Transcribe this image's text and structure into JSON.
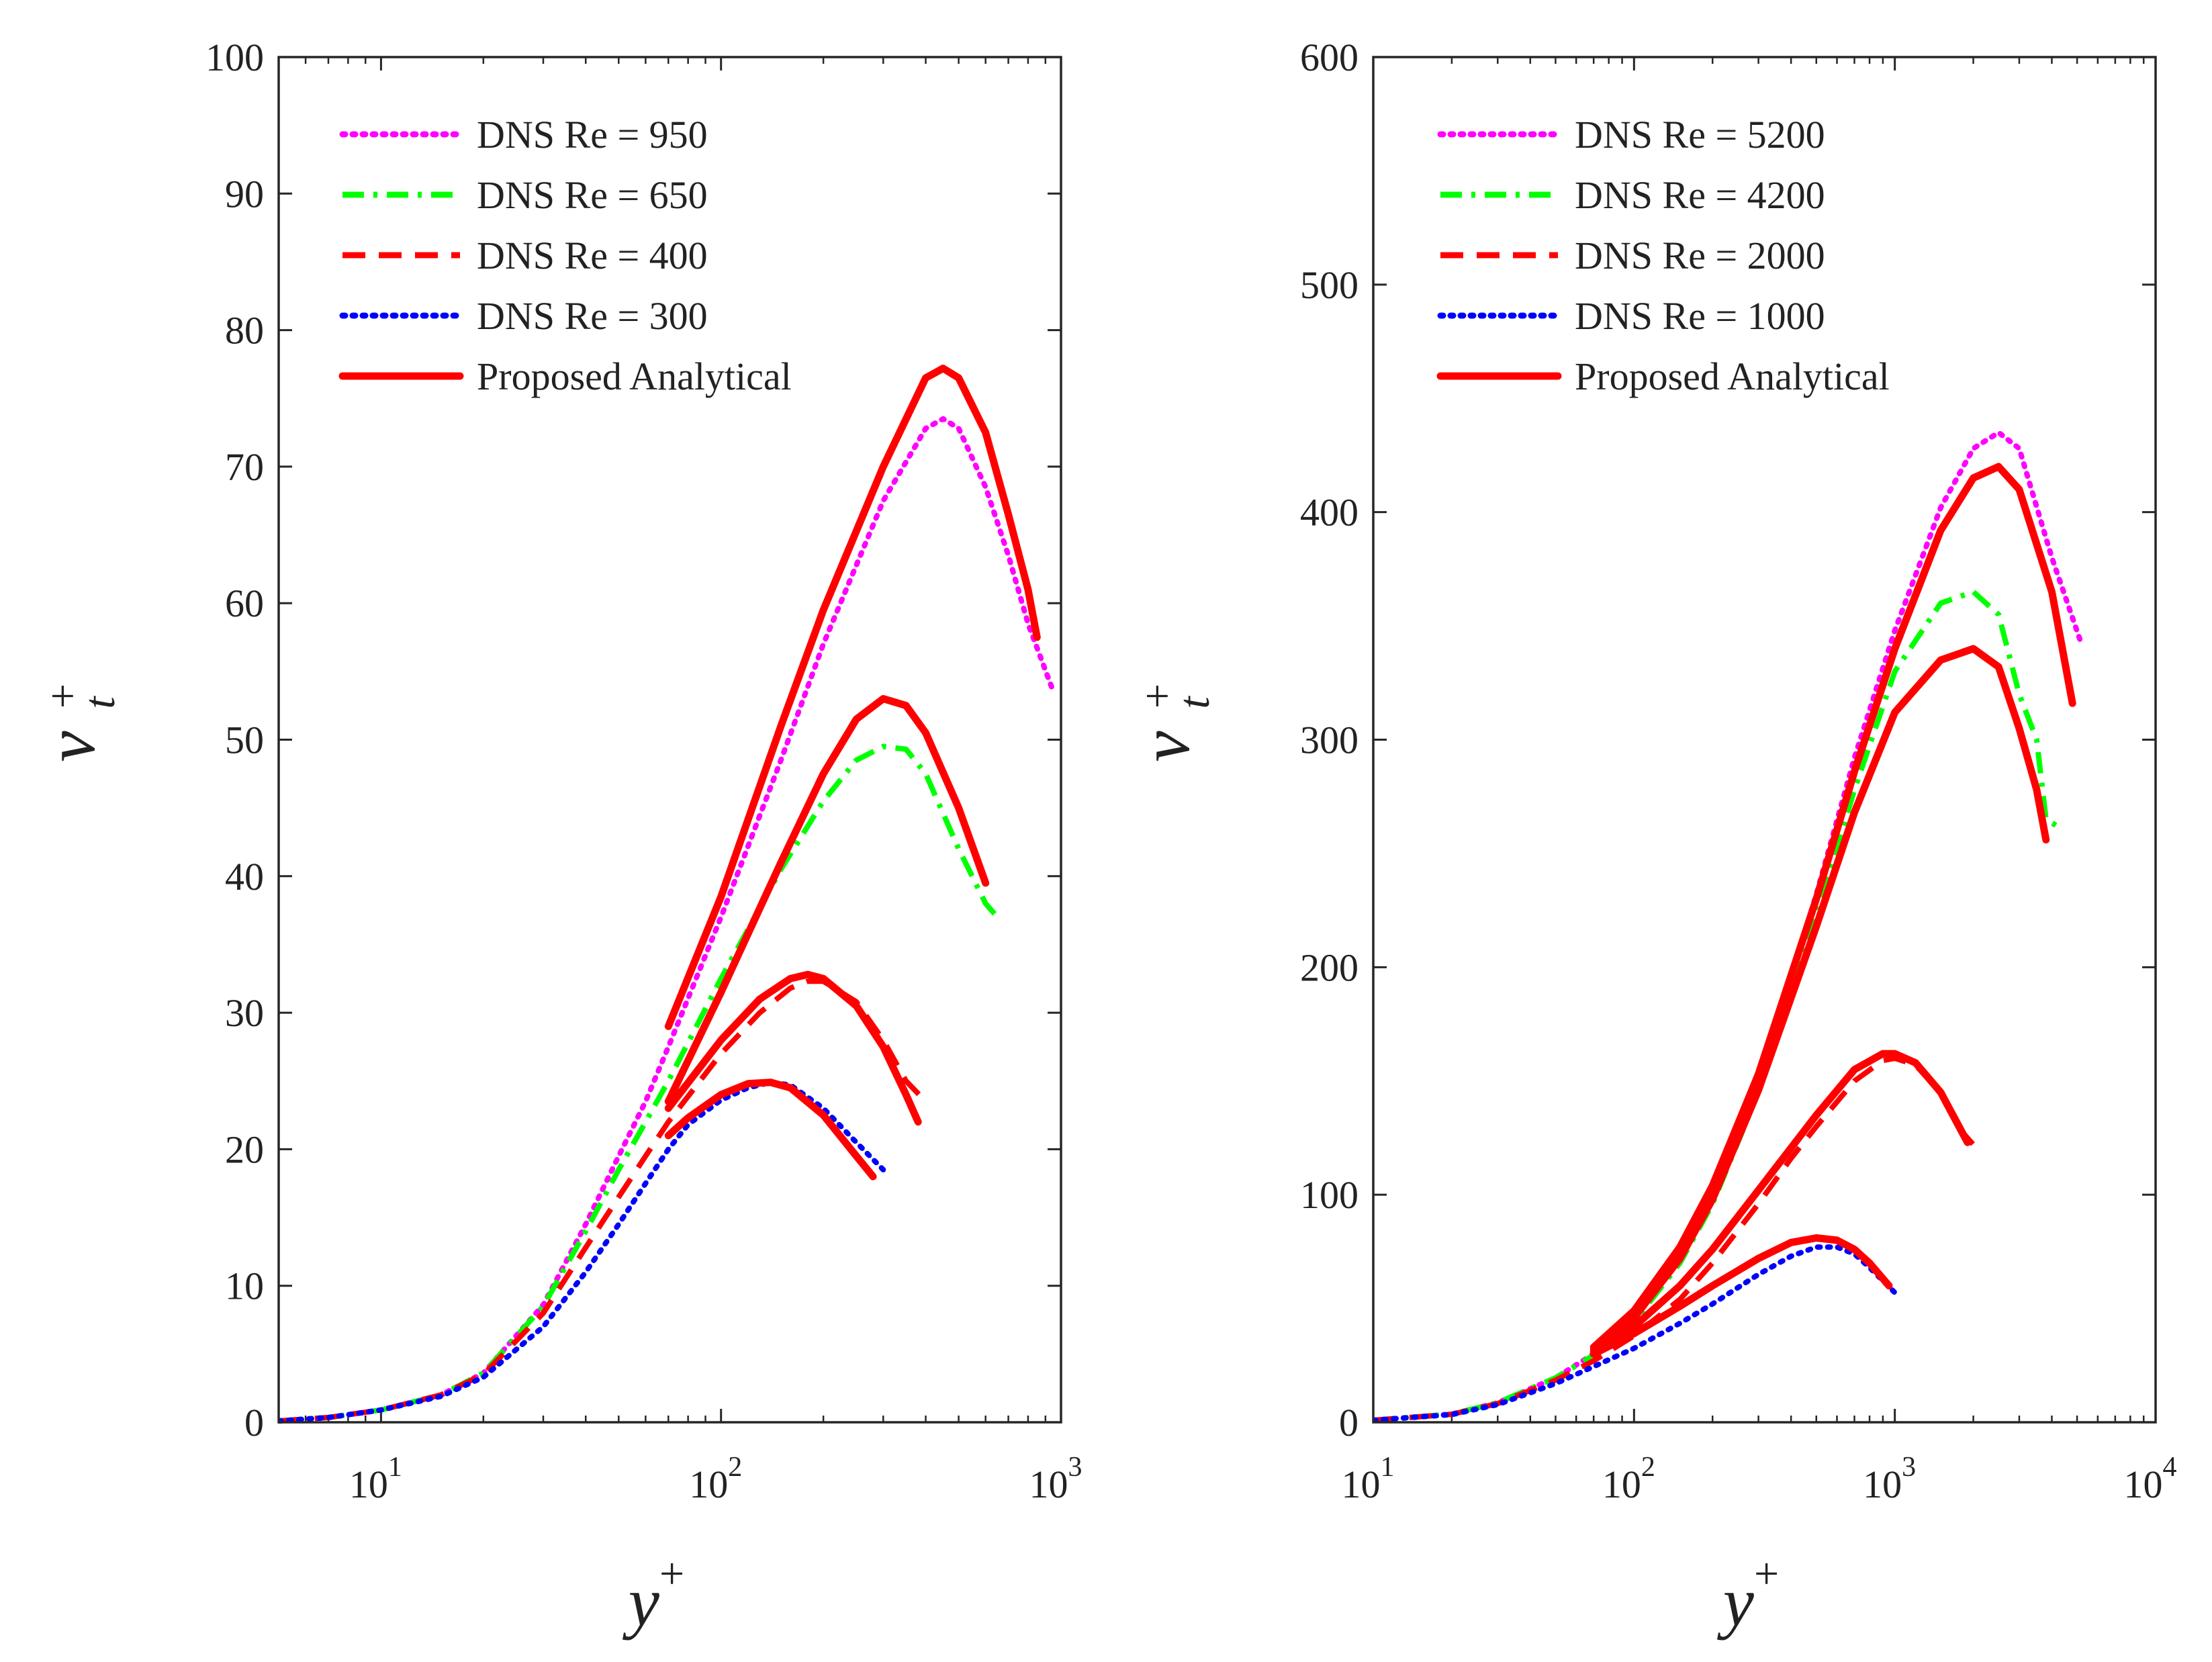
{
  "colors": {
    "magenta": "#ff00ff",
    "green": "#00ff00",
    "red": "#ff0000",
    "blue": "#0000ff",
    "axis": "#262626"
  },
  "chart_data": [
    {
      "type": "line",
      "xscale": "log",
      "xlim": [
        5,
        1000
      ],
      "ylim": [
        0,
        100
      ],
      "yticks": [
        "0",
        "10",
        "20",
        "30",
        "40",
        "50",
        "60",
        "70",
        "80",
        "90",
        "100"
      ],
      "xticks": [
        {
          "base": "10",
          "exp": "1",
          "value": 10
        },
        {
          "base": "10",
          "exp": "2",
          "value": 100
        },
        {
          "base": "10",
          "exp": "3",
          "value": 1000
        }
      ],
      "xlabel": {
        "base": "y",
        "sup": "+"
      },
      "ylabel": {
        "base": "ν",
        "sup": "+",
        "sub": "t"
      },
      "legend_position": "top-left",
      "series": [
        {
          "name": "DNS Re = 950",
          "color": "magenta",
          "style": "dotted",
          "x": [
            5,
            7,
            10,
            15,
            20,
            30,
            40,
            50,
            60,
            70,
            100,
            150,
            200,
            300,
            400,
            450,
            500,
            600,
            700,
            800,
            950
          ],
          "y": [
            0.1,
            0.35,
            0.9,
            2.0,
            3.6,
            8.6,
            14.5,
            19.5,
            23.5,
            27.5,
            37.0,
            48.5,
            57.0,
            67.5,
            72.8,
            73.5,
            72.8,
            68.5,
            63.5,
            58.5,
            53.5
          ]
        },
        {
          "name": "DNS Re = 650",
          "color": "green",
          "style": "dashdot",
          "x": [
            5,
            7,
            10,
            15,
            20,
            30,
            40,
            50,
            60,
            70,
            100,
            150,
            200,
            250,
            300,
            350,
            400,
            500,
            600,
            650
          ],
          "y": [
            0.1,
            0.35,
            0.9,
            2.0,
            3.6,
            8.5,
            14.0,
            18.5,
            22.0,
            25.0,
            32.5,
            40.5,
            45.5,
            48.5,
            49.5,
            49.3,
            47.5,
            42.0,
            38.0,
            37.0
          ]
        },
        {
          "name": "DNS Re = 400",
          "color": "red",
          "style": "dashed",
          "x": [
            5,
            7,
            10,
            15,
            20,
            30,
            40,
            50,
            60,
            70,
            100,
            130,
            160,
            180,
            200,
            250,
            300,
            350,
            400
          ],
          "y": [
            0.1,
            0.35,
            0.9,
            2.0,
            3.5,
            8.0,
            12.8,
            16.5,
            19.5,
            22.0,
            27.0,
            30.0,
            31.8,
            32.3,
            32.3,
            30.8,
            28.0,
            25.0,
            23.5
          ]
        },
        {
          "name": "DNS Re = 300",
          "color": "blue",
          "style": "dotted",
          "x": [
            5,
            7,
            10,
            15,
            20,
            30,
            40,
            50,
            60,
            70,
            80,
            100,
            120,
            140,
            160,
            200,
            250,
            300
          ],
          "y": [
            0.1,
            0.35,
            0.9,
            1.9,
            3.3,
            7.0,
            11.0,
            14.5,
            17.5,
            20.0,
            21.8,
            23.6,
            24.5,
            24.9,
            24.7,
            23.0,
            20.5,
            18.5
          ]
        },
        {
          "name": "Proposed Analytical",
          "color": "red",
          "style": "solid",
          "segments": [
            {
              "x": [
                70,
                100,
                150,
                200,
                300,
                400,
                450,
                500,
                600,
                700,
                800,
                850
              ],
              "y": [
                29.0,
                38.5,
                51.0,
                59.5,
                70.0,
                76.5,
                77.2,
                76.5,
                72.5,
                66.5,
                61.0,
                57.5
              ]
            },
            {
              "x": [
                70,
                100,
                150,
                200,
                250,
                300,
                350,
                400,
                500,
                600
              ],
              "y": [
                23.5,
                31.5,
                41.0,
                47.5,
                51.5,
                53.0,
                52.5,
                50.5,
                45.0,
                39.5
              ]
            },
            {
              "x": [
                70,
                100,
                130,
                160,
                180,
                200,
                250,
                300,
                350,
                380
              ],
              "y": [
                23.0,
                28.0,
                31.0,
                32.5,
                32.8,
                32.5,
                30.5,
                27.5,
                24.0,
                22.0
              ]
            },
            {
              "x": [
                70,
                80,
                100,
                120,
                140,
                160,
                200,
                250,
                280
              ],
              "y": [
                21.0,
                22.3,
                24.0,
                24.8,
                24.9,
                24.5,
                22.5,
                19.5,
                18.0
              ]
            }
          ]
        }
      ]
    },
    {
      "type": "line",
      "xscale": "log",
      "xlim": [
        10,
        10000
      ],
      "ylim": [
        0,
        600
      ],
      "yticks": [
        "0",
        "100",
        "200",
        "300",
        "400",
        "500",
        "600"
      ],
      "xticks": [
        {
          "base": "10",
          "exp": "1",
          "value": 10
        },
        {
          "base": "10",
          "exp": "2",
          "value": 100
        },
        {
          "base": "10",
          "exp": "3",
          "value": 1000
        },
        {
          "base": "10",
          "exp": "4",
          "value": 10000
        }
      ],
      "xlabel": {
        "base": "y",
        "sup": "+"
      },
      "ylabel": {
        "base": "ν",
        "sup": "+",
        "sub": "t"
      },
      "legend_position": "top-left",
      "series": [
        {
          "name": "DNS Re = 5200",
          "color": "magenta",
          "style": "dotted",
          "x": [
            10,
            20,
            30,
            50,
            70,
            100,
            150,
            200,
            300,
            500,
            700,
            1000,
            1500,
            2000,
            2500,
            3000,
            4000,
            5200
          ],
          "y": [
            0.9,
            3.6,
            8.6,
            19.5,
            30.0,
            45.0,
            72.0,
            99.0,
            150.0,
            232.0,
            292.0,
            348.0,
            402.0,
            428.0,
            435.0,
            428.0,
            380.0,
            342.0
          ]
        },
        {
          "name": "DNS Re = 4200",
          "color": "green",
          "style": "dashdot",
          "x": [
            10,
            20,
            30,
            50,
            70,
            100,
            150,
            200,
            300,
            500,
            700,
            1000,
            1500,
            2000,
            2500,
            3000,
            3500,
            3800,
            4200
          ],
          "y": [
            0.9,
            3.6,
            8.6,
            19.5,
            29.5,
            44.0,
            70.0,
            96.0,
            145.0,
            222.0,
            278.0,
            330.0,
            360.0,
            365.0,
            355.0,
            320.0,
            300.0,
            265.0,
            262.0
          ]
        },
        {
          "name": "DNS Re = 2000",
          "color": "red",
          "style": "dashed",
          "x": [
            10,
            20,
            30,
            50,
            70,
            100,
            150,
            200,
            300,
            400,
            500,
            700,
            900,
            1000,
            1200,
            1500,
            1800,
            2000
          ],
          "y": [
            0.9,
            3.5,
            8.2,
            18.5,
            27.0,
            38.0,
            54.0,
            70.0,
            96.0,
            116.0,
            130.0,
            150.0,
            159.0,
            160.0,
            157.0,
            145.0,
            128.0,
            122.0
          ]
        },
        {
          "name": "DNS Re = 1000",
          "color": "blue",
          "style": "dotted",
          "x": [
            10,
            20,
            30,
            50,
            70,
            100,
            150,
            200,
            300,
            400,
            500,
            600,
            700,
            800,
            1000
          ],
          "y": [
            0.9,
            3.4,
            7.8,
            17.0,
            24.5,
            32.5,
            43.5,
            52.0,
            65.0,
            73.0,
            77.0,
            77.0,
            74.0,
            68.0,
            57.0
          ]
        },
        {
          "name": "Proposed Analytical",
          "color": "red",
          "style": "solid",
          "segments": [
            {
              "x": [
                70,
                100,
                150,
                200,
                300,
                500,
                700,
                1000,
                1500,
                2000,
                2500,
                3000,
                4000,
                4800
              ],
              "y": [
                33.0,
                49.0,
                77.0,
                104.0,
                153.0,
                230.0,
                286.0,
                340.0,
                392.0,
                415.0,
                420.0,
                410.0,
                365.0,
                316.0
              ]
            },
            {
              "x": [
                70,
                100,
                150,
                200,
                300,
                500,
                700,
                1000,
                1500,
                2000,
                2500,
                3000,
                3500,
                3800
              ],
              "y": [
                32.0,
                46.0,
                72.0,
                98.0,
                146.0,
                218.0,
                268.0,
                312.0,
                335.0,
                340.0,
                332.0,
                305.0,
                278.0,
                256.0
              ]
            },
            {
              "x": [
                70,
                100,
                150,
                200,
                300,
                500,
                700,
                900,
                1000,
                1200,
                1500,
                1900
              ],
              "y": [
                31.0,
                42.0,
                60.0,
                76.0,
                102.0,
                135.0,
                155.0,
                162.0,
                162.0,
                158.0,
                145.0,
                123.0
              ]
            },
            {
              "x": [
                70,
                100,
                150,
                200,
                300,
                400,
                500,
                600,
                700,
                800,
                950
              ],
              "y": [
                30.0,
                39.0,
                51.0,
                60.0,
                72.0,
                79.0,
                81.0,
                80.0,
                76.0,
                70.0,
                60.0
              ]
            }
          ]
        }
      ]
    }
  ]
}
